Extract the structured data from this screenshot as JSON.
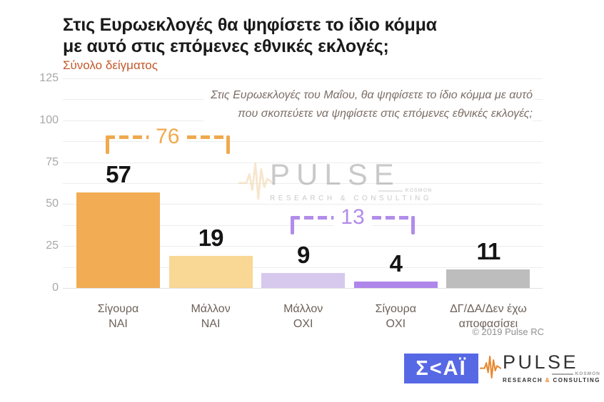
{
  "header": {
    "title_line1": "Στις Ευρωεκλογές θα ψηφίσετε το ίδιο κόμμα",
    "title_line2": "με αυτό στις επόμενες εθνικές εκλογές;",
    "subtitle": "Σύνολο δείγματος"
  },
  "annotation": {
    "line1": "Στις Ευρωεκλογές του Μαΐου, θα ψηφίσετε το ίδιο κόμμα με αυτό",
    "line2": "που σκοπεύετε να ψηφίσετε στις επόμενες εθνικές εκλογές;"
  },
  "chart_data": {
    "type": "bar",
    "title": "Στις Ευρωεκλογές θα ψηφίσετε το ίδιο κόμμα με αυτό στις επόμενες εθνικές εκλογές;",
    "subtitle": "Σύνολο δείγματος",
    "categories": [
      "Σίγουρα ΝΑΙ",
      "Μάλλον ΝΑΙ",
      "Μάλλον ΟΧΙ",
      "Σίγουρα ΟΧΙ",
      "ΔΓ/ΔΑ/Δεν έχω αποφασίσει"
    ],
    "values": [
      57,
      19,
      9,
      4,
      11
    ],
    "bar_colors": [
      "#F2AC54",
      "#F9D794",
      "#D7C8EE",
      "#AF86EA",
      "#BDBDBD"
    ],
    "ylim": [
      0,
      125
    ],
    "yticks": [
      0,
      25,
      50,
      75,
      100,
      125
    ],
    "grid_step": 12.5,
    "grid": "horizontal",
    "legend": "none",
    "groups": [
      {
        "label": "76",
        "from": 0,
        "to": 1,
        "color": "#F0A94E"
      },
      {
        "label": "13",
        "from": 2,
        "to": 3,
        "color": "#B18CEA"
      }
    ]
  },
  "watermark": {
    "brand": "PULSE",
    "sub": "KOSMON",
    "tagline": "RESEARCH & CONSULTING"
  },
  "footer": {
    "copyright": "© 2019 Pulse RC",
    "skai_text": "Σ<ΑΪ",
    "skai_color": "#5768E5",
    "pulse": {
      "brand": "PULSE",
      "sub": "KOSMON",
      "tagline_left": "RESEARCH",
      "amp": "&",
      "tagline_right": "CONSULTING",
      "accent_color": "#E8872E"
    }
  }
}
